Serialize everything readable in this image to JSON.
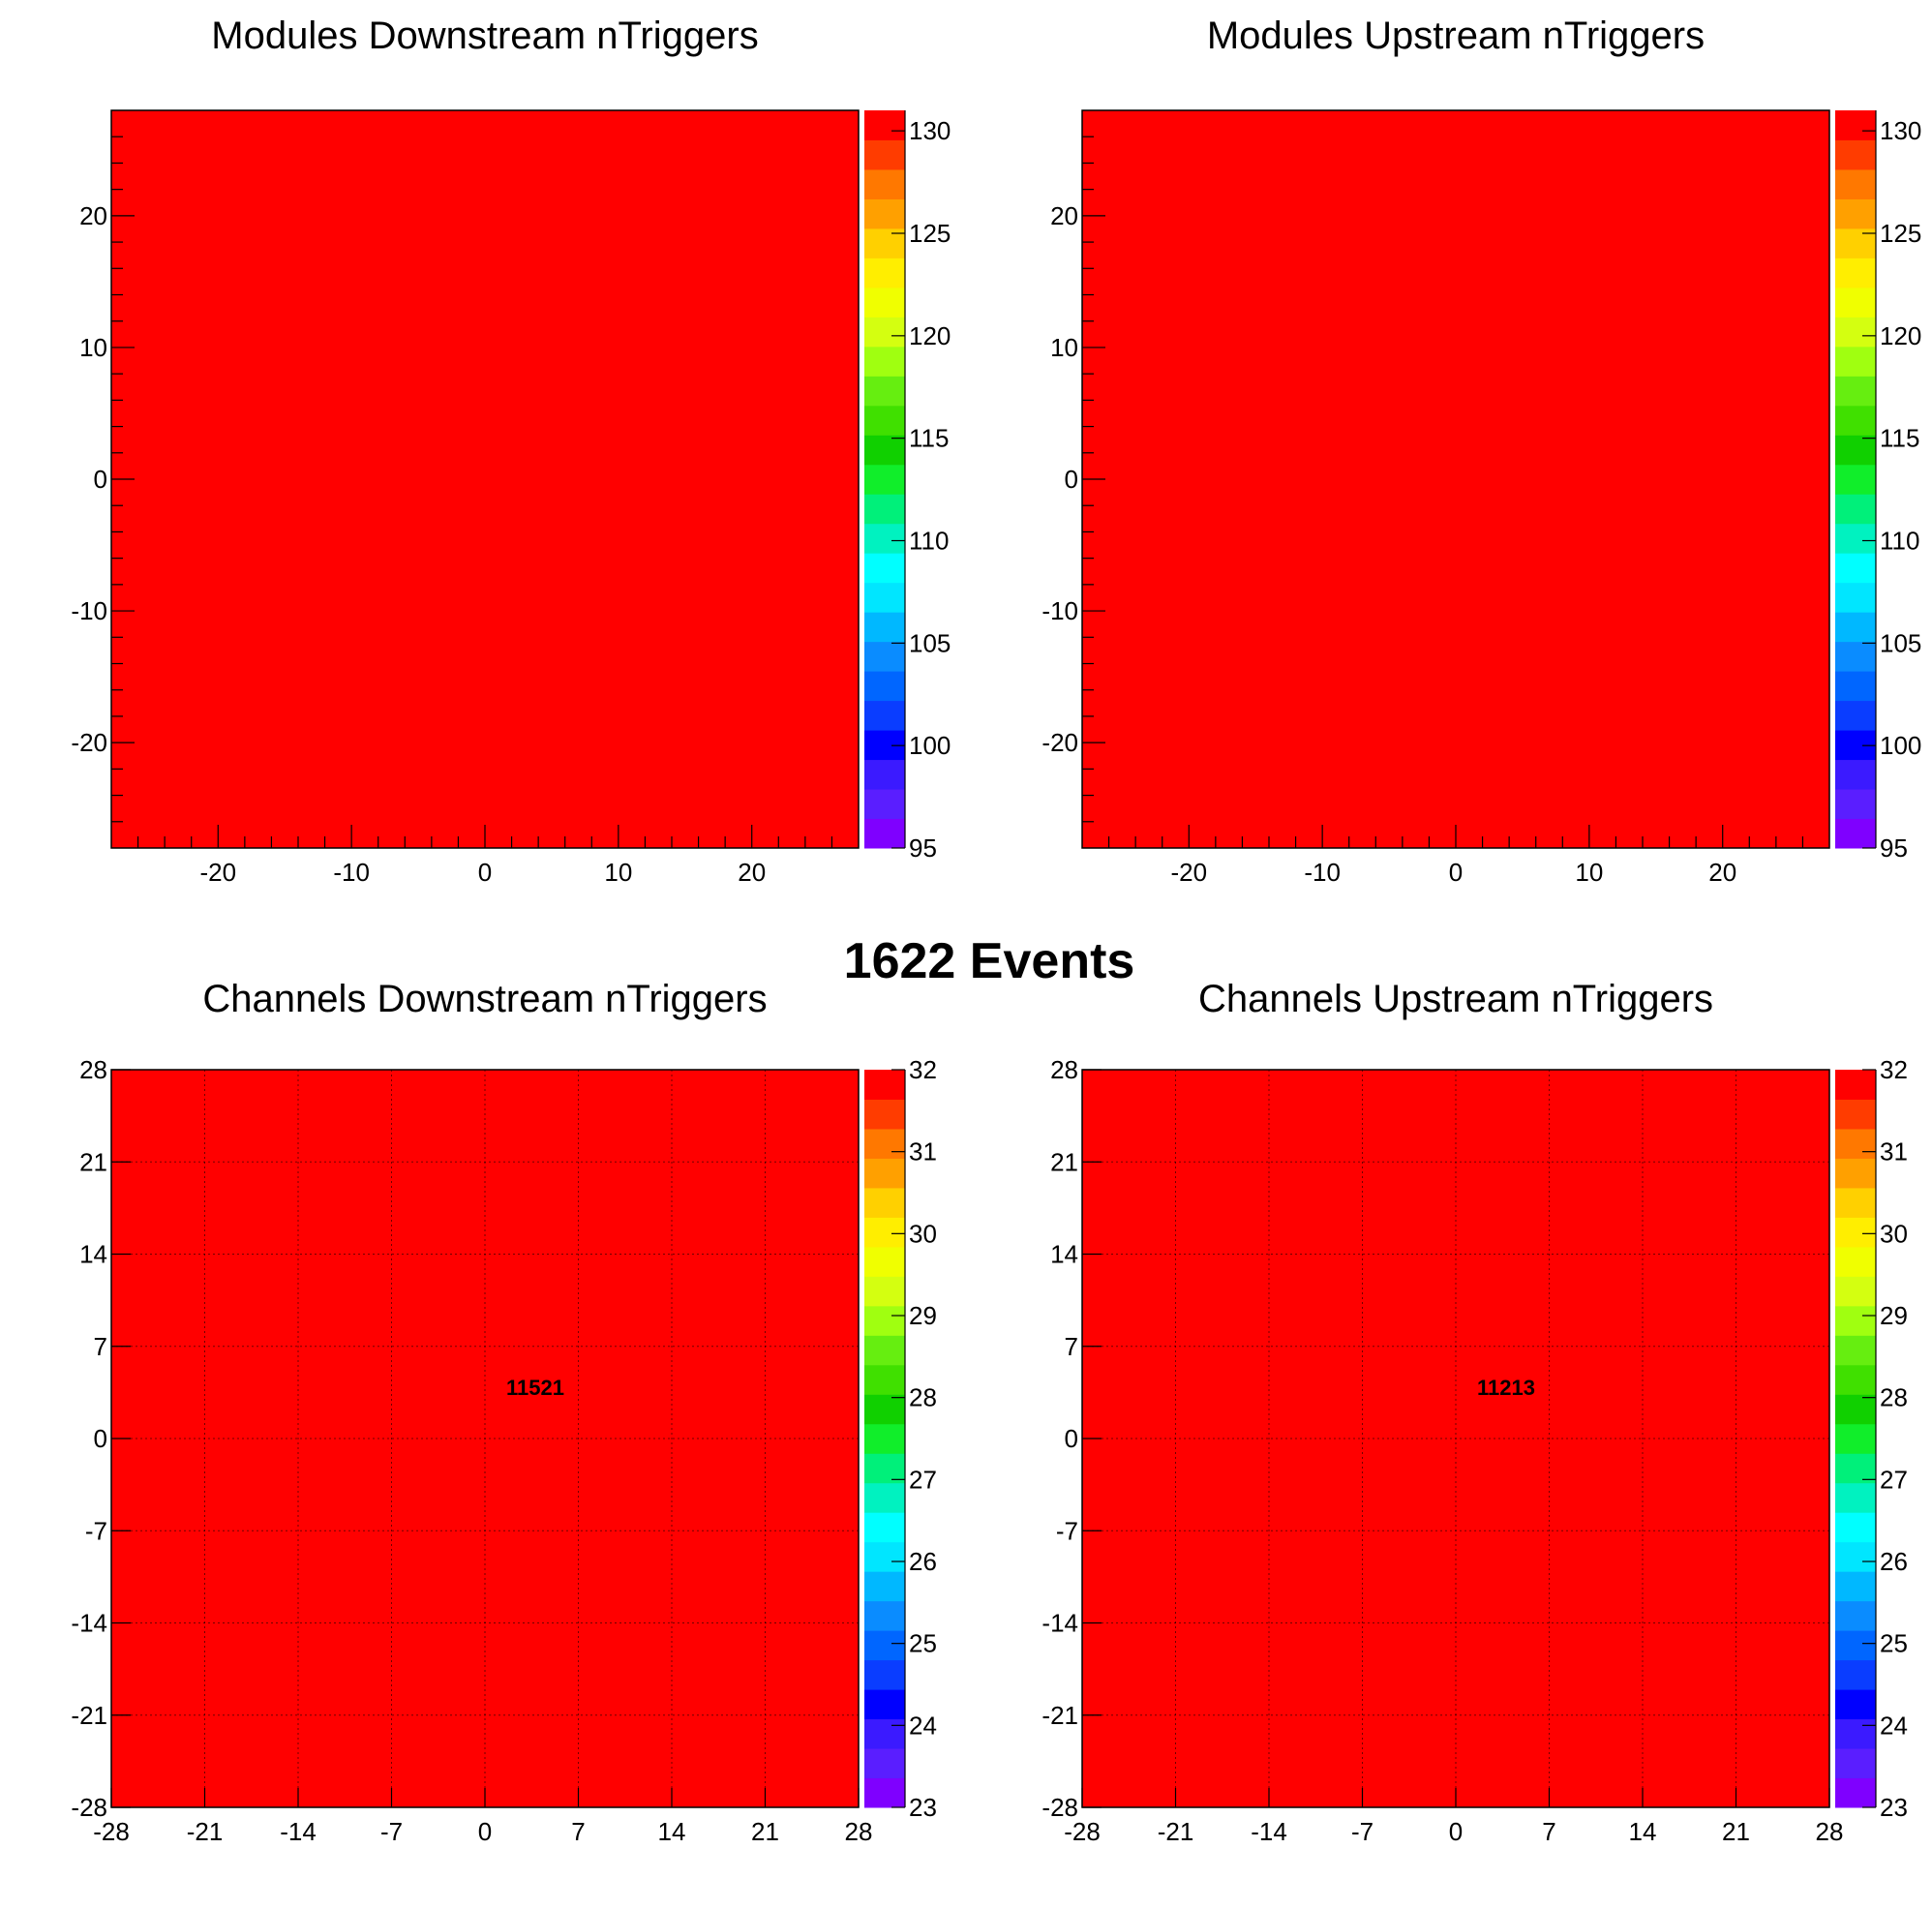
{
  "page": {
    "events_label": "1622 Events"
  },
  "chart_data": [
    {
      "type": "heatmap",
      "title": "Modules Downstream nTriggers",
      "xlabel": "",
      "ylabel": "",
      "xlim": [
        -28,
        28
      ],
      "ylim": [
        -28,
        28
      ],
      "xticks": [
        -20,
        -10,
        0,
        10,
        20
      ],
      "yticks": [
        -20,
        -10,
        0,
        10,
        20
      ],
      "grid": false,
      "cells": [
        {
          "x": [
            -28,
            28
          ],
          "y": [
            -28,
            28
          ],
          "value": 131,
          "label": ""
        }
      ],
      "colorbar": {
        "min": 95,
        "max": 131,
        "ticks": [
          95,
          100,
          105,
          110,
          115,
          120,
          125,
          130
        ]
      }
    },
    {
      "type": "heatmap",
      "title": "Modules Upstream nTriggers",
      "xlabel": "",
      "ylabel": "",
      "xlim": [
        -28,
        28
      ],
      "ylim": [
        -28,
        28
      ],
      "xticks": [
        -20,
        -10,
        0,
        10,
        20
      ],
      "yticks": [
        -20,
        -10,
        0,
        10,
        20
      ],
      "grid": false,
      "cells": [
        {
          "x": [
            -28,
            28
          ],
          "y": [
            -28,
            28
          ],
          "value": 131,
          "label": ""
        }
      ],
      "colorbar": {
        "min": 95,
        "max": 131,
        "ticks": [
          95,
          100,
          105,
          110,
          115,
          120,
          125,
          130
        ]
      }
    },
    {
      "type": "heatmap",
      "title": "Channels Downstream nTriggers",
      "xlabel": "",
      "ylabel": "",
      "xlim": [
        -28,
        28
      ],
      "ylim": [
        -28,
        28
      ],
      "xticks": [
        -28,
        -21,
        -14,
        -7,
        0,
        7,
        14,
        21,
        28
      ],
      "yticks": [
        -28,
        -21,
        -14,
        -7,
        0,
        7,
        14,
        21,
        28
      ],
      "grid": true,
      "cells": [
        {
          "x": [
            -28,
            28
          ],
          "y": [
            -28,
            28
          ],
          "value": 32,
          "label": "11521"
        }
      ],
      "colorbar": {
        "min": 23,
        "max": 32,
        "ticks": [
          23,
          24,
          25,
          26,
          27,
          28,
          29,
          30,
          31,
          32
        ]
      }
    },
    {
      "type": "heatmap",
      "title": "Channels Upstream nTriggers",
      "xlabel": "",
      "ylabel": "",
      "xlim": [
        -28,
        28
      ],
      "ylim": [
        -28,
        28
      ],
      "xticks": [
        -28,
        -21,
        -14,
        -7,
        0,
        7,
        14,
        21,
        28
      ],
      "yticks": [
        -28,
        -21,
        -14,
        -7,
        0,
        7,
        14,
        21,
        28
      ],
      "grid": true,
      "cells": [
        {
          "x": [
            -28,
            28
          ],
          "y": [
            -28,
            28
          ],
          "value": 32,
          "label": "11213"
        }
      ],
      "colorbar": {
        "min": 23,
        "max": 32,
        "ticks": [
          23,
          24,
          25,
          26,
          27,
          28,
          29,
          30,
          31,
          32
        ]
      }
    }
  ],
  "colors": {
    "palette": [
      "#7f00ff",
      "#5a1eff",
      "#3b1aff",
      "#0000ff",
      "#0a3dff",
      "#0066ff",
      "#0a8cff",
      "#00b8ff",
      "#00e6ff",
      "#00ffff",
      "#00f2c0",
      "#00f07a",
      "#10ee2a",
      "#10d000",
      "#40e000",
      "#66ee10",
      "#a0ff10",
      "#d4ff10",
      "#f0ff00",
      "#ffee00",
      "#ffd000",
      "#ffa000",
      "#ff7800",
      "#ff3c00",
      "#ff0000"
    ],
    "fill": "#ff0000"
  }
}
